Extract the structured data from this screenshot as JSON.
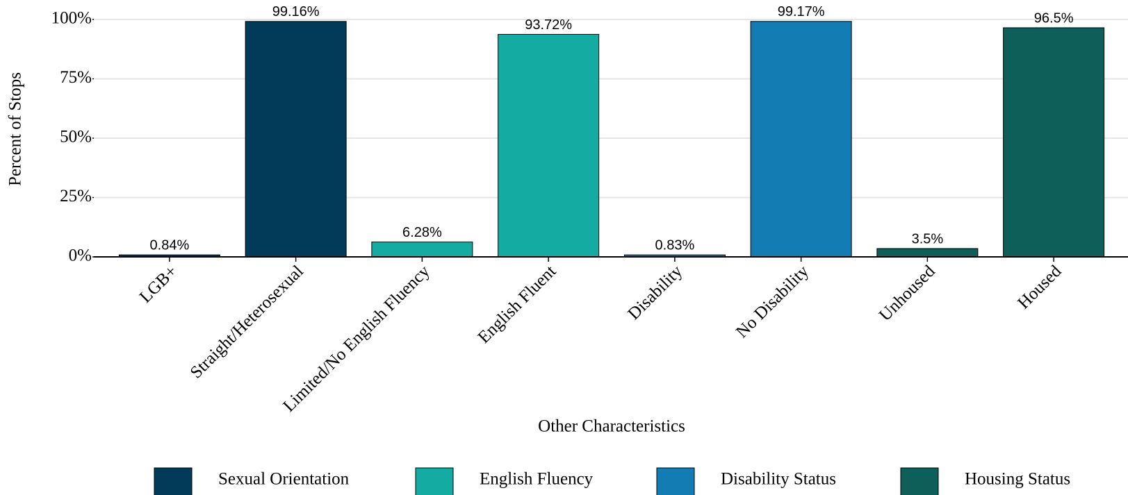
{
  "chart_data": {
    "type": "bar",
    "y_label": "Percent of Stops",
    "x_label": "Other Characteristics",
    "categories": [
      "LGB+",
      "Straight/Heterosexual",
      "Limited/No English Fluency",
      "English Fluent",
      "Disability",
      "No Disability",
      "Unhoused",
      "Housed"
    ],
    "series": [
      {
        "name": "Sexual Orientation",
        "color": "#023a5a",
        "values": [
          0.84,
          99.16,
          null,
          null,
          null,
          null,
          null,
          null
        ],
        "value_labels": [
          "0.84%",
          "99.16%",
          null,
          null,
          null,
          null,
          null,
          null
        ]
      },
      {
        "name": "English Fluency",
        "color": "#14aba3",
        "values": [
          null,
          null,
          6.28,
          93.72,
          null,
          null,
          null,
          null
        ],
        "value_labels": [
          null,
          null,
          "6.28%",
          "93.72%",
          null,
          null,
          null,
          null
        ]
      },
      {
        "name": "Disability Status",
        "color": "#137cb2",
        "values": [
          null,
          null,
          null,
          null,
          0.83,
          99.17,
          null,
          null
        ],
        "value_labels": [
          null,
          null,
          null,
          null,
          "0.83%",
          "99.17%",
          null,
          null
        ]
      },
      {
        "name": "Housing Status",
        "color": "#0e5f5a",
        "values": [
          null,
          null,
          null,
          null,
          null,
          null,
          3.5,
          96.5
        ],
        "value_labels": [
          null,
          null,
          null,
          null,
          null,
          null,
          "3.5%",
          "96.5%"
        ]
      }
    ],
    "ylim": [
      0,
      100
    ],
    "yticks": [
      {
        "value": 0,
        "label": "0%"
      },
      {
        "value": 25,
        "label": "25%"
      },
      {
        "value": 50,
        "label": "50%"
      },
      {
        "value": 75,
        "label": "75%"
      },
      {
        "value": 100,
        "label": "100%"
      }
    ],
    "grid": true,
    "legend": "bottom"
  }
}
